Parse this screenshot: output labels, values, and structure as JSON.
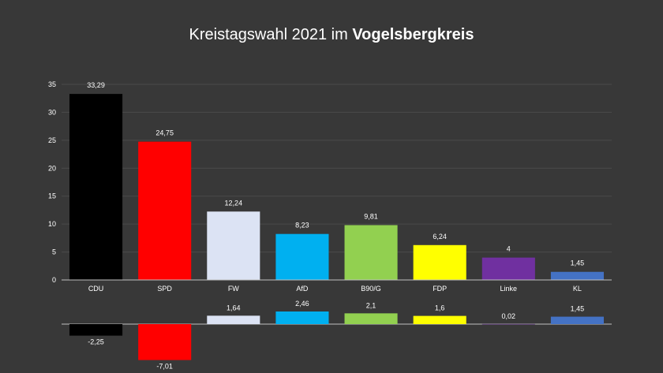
{
  "chart_data": [
    {
      "type": "bar",
      "title_prefix": "Kreistagswahl 2021 im ",
      "title_bold": "Vogelsbergkreis",
      "categories": [
        "CDU",
        "SPD",
        "FW",
        "AfD",
        "B90/G",
        "FDP",
        "Linke",
        "KL"
      ],
      "values": [
        33.29,
        24.75,
        12.24,
        8.23,
        9.81,
        6.24,
        4,
        1.45
      ],
      "value_labels": [
        "33,29",
        "24,75",
        "12,24",
        "8,23",
        "9,81",
        "6,24",
        "4",
        "1,45"
      ],
      "colors": [
        "#000000",
        "#ff0000",
        "#dce3f4",
        "#00b0f0",
        "#92d050",
        "#ffff00",
        "#7030a0",
        "#4472c4"
      ],
      "yticks": [
        "0",
        "5",
        "10",
        "15",
        "20",
        "25",
        "30",
        "35"
      ],
      "ylim": [
        0,
        35
      ],
      "grid": true
    },
    {
      "type": "bar",
      "categories": [
        "CDU",
        "SPD",
        "FW",
        "AfD",
        "B90/G",
        "FDP",
        "Linke",
        "KL"
      ],
      "values": [
        -2.25,
        -7.01,
        1.64,
        2.46,
        2.1,
        1.6,
        0.02,
        1.45
      ],
      "value_labels": [
        "-2,25",
        "-7,01",
        "1,64",
        "2,46",
        "2,1",
        "1,6",
        "0,02",
        "1,45"
      ],
      "colors": [
        "#000000",
        "#ff0000",
        "#dce3f4",
        "#00b0f0",
        "#92d050",
        "#ffff00",
        "#7030a0",
        "#4472c4"
      ]
    }
  ],
  "colors": {
    "background": "#383838",
    "grid": "#4a4a4a",
    "axis": "#bfbfbf"
  }
}
